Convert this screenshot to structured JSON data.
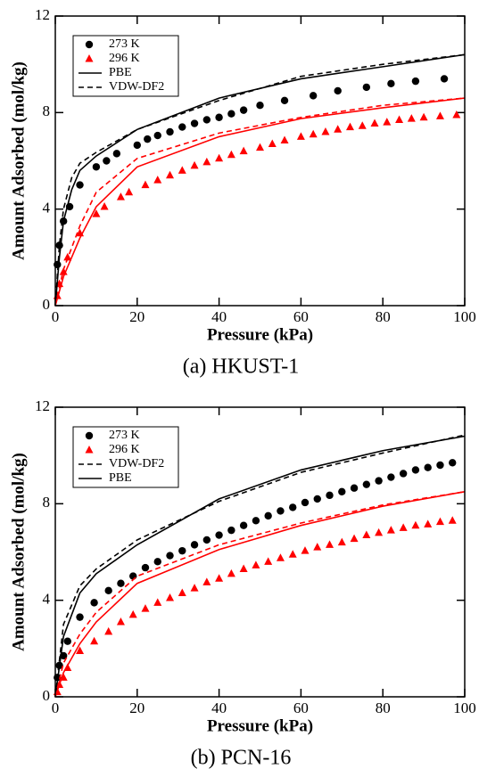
{
  "chart_data": [
    {
      "type": "line",
      "caption": "(a) HKUST-1",
      "xlabel": "Pressure (kPa)",
      "ylabel": "Amount Adsorbed (mol/kg)",
      "xlim": [
        0,
        100
      ],
      "ylim": [
        0,
        12
      ],
      "xticks": [
        0,
        20,
        40,
        60,
        80,
        100
      ],
      "yticks": [
        0,
        4,
        8,
        12
      ],
      "series": [
        {
          "name": "273 K",
          "color": "#000000",
          "marker": "circle",
          "x": [
            0.5,
            1,
            2,
            3.5,
            6,
            10,
            12.5,
            15,
            20,
            22.5,
            25,
            28,
            31,
            34,
            37,
            40,
            43,
            46,
            50,
            56,
            63,
            69,
            76,
            82,
            88,
            95
          ],
          "values": [
            1.7,
            2.5,
            3.5,
            4.1,
            5.0,
            5.75,
            6.0,
            6.3,
            6.65,
            6.9,
            7.05,
            7.2,
            7.4,
            7.55,
            7.7,
            7.8,
            7.95,
            8.1,
            8.3,
            8.5,
            8.7,
            8.9,
            9.05,
            9.2,
            9.3,
            9.4
          ]
        },
        {
          "name": "296 K",
          "color": "#ff0000",
          "marker": "triangle",
          "x": [
            0.5,
            1,
            2,
            3,
            6,
            10,
            12,
            16,
            18,
            22,
            25,
            28,
            31,
            34,
            37,
            40,
            43,
            46,
            50,
            53,
            56,
            60,
            63,
            66,
            69,
            72,
            75,
            78,
            81,
            84,
            87,
            90,
            94,
            98
          ],
          "values": [
            0.4,
            0.9,
            1.4,
            2.0,
            3.0,
            3.8,
            4.1,
            4.5,
            4.7,
            5.0,
            5.2,
            5.4,
            5.6,
            5.8,
            5.95,
            6.1,
            6.25,
            6.4,
            6.55,
            6.7,
            6.85,
            7.0,
            7.1,
            7.2,
            7.3,
            7.4,
            7.45,
            7.55,
            7.6,
            7.7,
            7.75,
            7.8,
            7.85,
            7.9
          ]
        },
        {
          "name": "PBE",
          "color": "#000000",
          "linestyle": "solid",
          "x": [
            0,
            1,
            2,
            4,
            6,
            10,
            20,
            40,
            60,
            80,
            100
          ],
          "values": [
            0,
            2,
            3.5,
            4.8,
            5.6,
            6.2,
            7.3,
            8.6,
            9.4,
            9.9,
            10.4
          ]
        },
        {
          "name": "VDW-DF2",
          "color": "#000000",
          "linestyle": "dashed",
          "x": [
            0,
            1,
            2,
            4,
            6,
            10,
            20,
            40,
            60,
            80,
            100
          ],
          "values": [
            0,
            2.5,
            4.0,
            5.3,
            5.9,
            6.35,
            7.3,
            8.5,
            9.5,
            10.0,
            10.4
          ]
        },
        {
          "color": "#ff0000",
          "linestyle": "solid",
          "x": [
            0,
            2,
            6,
            10,
            20,
            40,
            60,
            80,
            100
          ],
          "values": [
            0,
            1.2,
            2.8,
            4.1,
            5.75,
            7.0,
            7.75,
            8.2,
            8.6
          ]
        },
        {
          "color": "#ff0000",
          "linestyle": "dashed",
          "x": [
            0,
            2,
            6,
            10,
            20,
            40,
            60,
            80,
            100
          ],
          "values": [
            0,
            1.5,
            3.3,
            4.7,
            6.1,
            7.15,
            7.8,
            8.3,
            8.6
          ]
        }
      ]
    },
    {
      "type": "line",
      "caption": "(b) PCN-16",
      "xlabel": "Pressure (kPa)",
      "ylabel": "Amount Adsorbed (mol/kg)",
      "xlim": [
        0,
        100
      ],
      "ylim": [
        0,
        12
      ],
      "xticks": [
        0,
        20,
        40,
        60,
        80,
        100
      ],
      "yticks": [
        0,
        4,
        8,
        12
      ],
      "series": [
        {
          "name": "273 K",
          "color": "#000000",
          "marker": "circle",
          "x": [
            0.5,
            1,
            2,
            3,
            6,
            9.5,
            13,
            16,
            19,
            22,
            25,
            28,
            31,
            34,
            37,
            40,
            43,
            46,
            49,
            52,
            55,
            58,
            61,
            64,
            67,
            70,
            73,
            76,
            79,
            82,
            85,
            88,
            91,
            94,
            97
          ],
          "values": [
            0.8,
            1.3,
            1.7,
            2.3,
            3.3,
            3.9,
            4.4,
            4.7,
            5.0,
            5.35,
            5.6,
            5.85,
            6.05,
            6.3,
            6.5,
            6.7,
            6.9,
            7.1,
            7.3,
            7.5,
            7.7,
            7.85,
            8.05,
            8.2,
            8.35,
            8.5,
            8.65,
            8.8,
            8.95,
            9.1,
            9.25,
            9.4,
            9.5,
            9.6,
            9.7
          ]
        },
        {
          "name": "296 K",
          "color": "#ff0000",
          "marker": "triangle",
          "x": [
            0.5,
            1,
            2,
            3,
            6,
            9.5,
            13,
            16,
            19,
            22,
            25,
            28,
            31,
            34,
            37,
            40,
            43,
            46,
            49,
            52,
            55,
            58,
            61,
            64,
            67,
            70,
            73,
            76,
            79,
            82,
            85,
            88,
            91,
            94,
            97
          ],
          "values": [
            0.2,
            0.5,
            0.8,
            1.2,
            1.9,
            2.3,
            2.7,
            3.1,
            3.4,
            3.65,
            3.9,
            4.1,
            4.3,
            4.5,
            4.75,
            4.9,
            5.1,
            5.3,
            5.45,
            5.6,
            5.75,
            5.9,
            6.05,
            6.2,
            6.3,
            6.4,
            6.55,
            6.7,
            6.8,
            6.9,
            7.0,
            7.1,
            7.15,
            7.25,
            7.3
          ]
        },
        {
          "name": "VDW-DF2",
          "color": "#000000",
          "linestyle": "dashed",
          "x": [
            0,
            2,
            6,
            10,
            20,
            40,
            60,
            80,
            100
          ],
          "values": [
            0,
            3.0,
            4.6,
            5.3,
            6.5,
            8.1,
            9.3,
            10.1,
            10.85
          ]
        },
        {
          "name": "PBE",
          "color": "#000000",
          "linestyle": "solid",
          "x": [
            0,
            2,
            6,
            10,
            20,
            40,
            60,
            80,
            100
          ],
          "values": [
            0,
            2.5,
            4.3,
            5.1,
            6.3,
            8.2,
            9.4,
            10.2,
            10.8
          ]
        },
        {
          "color": "#ff0000",
          "linestyle": "solid",
          "x": [
            0,
            2,
            6,
            10,
            20,
            40,
            60,
            80,
            100
          ],
          "values": [
            0,
            1.0,
            2.2,
            3.1,
            4.7,
            6.1,
            7.1,
            7.9,
            8.5
          ]
        },
        {
          "color": "#ff0000",
          "linestyle": "dashed",
          "x": [
            0,
            2,
            6,
            10,
            20,
            40,
            60,
            80,
            100
          ],
          "values": [
            0,
            1.4,
            2.6,
            3.5,
            5.0,
            6.3,
            7.2,
            7.95,
            8.5
          ]
        }
      ]
    }
  ]
}
